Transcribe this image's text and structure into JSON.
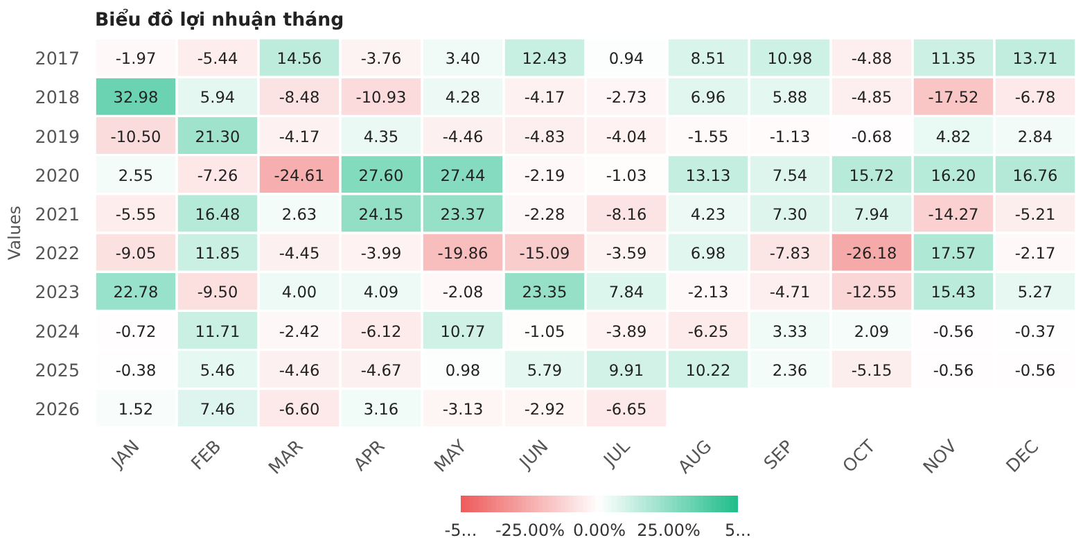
{
  "chart_data": {
    "type": "heatmap",
    "title": "Biểu đồ lợi nhuận tháng",
    "ylabel": "Values",
    "categories": [
      "JAN",
      "FEB",
      "MAR",
      "APR",
      "MAY",
      "JUN",
      "JUL",
      "AUG",
      "SEP",
      "OCT",
      "NOV",
      "DEC"
    ],
    "y_categories": [
      "2017",
      "2018",
      "2019",
      "2020",
      "2021",
      "2022",
      "2023",
      "2024",
      "2025",
      "2026"
    ],
    "cells": [
      [
        -1.97,
        -5.44,
        14.56,
        -3.76,
        3.4,
        12.43,
        0.94,
        8.51,
        10.98,
        -4.88,
        11.35,
        13.71
      ],
      [
        32.98,
        5.94,
        -8.48,
        -10.93,
        4.28,
        -4.17,
        -2.73,
        6.96,
        5.88,
        -4.85,
        -17.52,
        -6.78
      ],
      [
        -10.5,
        21.3,
        -4.17,
        4.35,
        -4.46,
        -4.83,
        -4.04,
        -1.55,
        -1.13,
        -0.68,
        4.82,
        2.84
      ],
      [
        2.55,
        -7.26,
        -24.61,
        27.6,
        27.44,
        -2.19,
        -1.03,
        13.13,
        7.54,
        15.72,
        16.2,
        16.76
      ],
      [
        -5.55,
        16.48,
        2.63,
        24.15,
        23.37,
        -2.28,
        -8.16,
        4.23,
        7.3,
        7.94,
        -14.27,
        -5.21
      ],
      [
        -9.05,
        11.85,
        -4.45,
        -3.99,
        -19.86,
        -15.09,
        -3.59,
        6.98,
        -7.83,
        -26.18,
        17.57,
        -2.17
      ],
      [
        22.78,
        -9.5,
        4.0,
        4.09,
        -2.08,
        23.35,
        7.84,
        -2.13,
        -4.71,
        -12.55,
        15.43,
        5.27
      ],
      [
        -0.72,
        11.71,
        -2.42,
        -6.12,
        10.77,
        -1.05,
        -3.89,
        -6.25,
        3.33,
        2.09,
        -0.56,
        -0.37
      ],
      [
        -0.38,
        5.46,
        -4.46,
        -4.67,
        0.98,
        5.79,
        9.91,
        10.22,
        2.36,
        -5.15,
        -0.56,
        -0.56
      ],
      [
        1.52,
        7.46,
        -6.6,
        3.16,
        -3.13,
        -2.92,
        -6.65,
        null,
        null,
        null,
        null,
        null
      ]
    ],
    "cell_labels": [
      [
        "-1.97",
        "-5.44",
        "14.56",
        "-3.76",
        "3.40",
        "12.43",
        "0.94",
        "8.51",
        "10.98",
        "-4.88",
        "11.35",
        "13.71"
      ],
      [
        "32.98",
        "5.94",
        "-8.48",
        "-10.93",
        "4.28",
        "-4.17",
        "-2.73",
        "6.96",
        "5.88",
        "-4.85",
        "-17.52",
        "-6.78"
      ],
      [
        "-10.50",
        "21.30",
        "-4.17",
        "4.35",
        "-4.46",
        "-4.83",
        "-4.04",
        "-1.55",
        "-1.13",
        "-0.68",
        "4.82",
        "2.84"
      ],
      [
        "2.55",
        "-7.26",
        "-24.61",
        "27.60",
        "27.44",
        "-2.19",
        "-1.03",
        "13.13",
        "7.54",
        "15.72",
        "16.20",
        "16.76"
      ],
      [
        "-5.55",
        "16.48",
        "2.63",
        "24.15",
        "23.37",
        "-2.28",
        "-8.16",
        "4.23",
        "7.30",
        "7.94",
        "-14.27",
        "-5.21"
      ],
      [
        "-9.05",
        "11.85",
        "-4.45",
        "-3.99",
        "-19.86",
        "-15.09",
        "-3.59",
        "6.98",
        "-7.83",
        "-26.18",
        "17.57",
        "-2.17"
      ],
      [
        "22.78",
        "-9.50",
        "4.00",
        "4.09",
        "-2.08",
        "23.35",
        "7.84",
        "-2.13",
        "-4.71",
        "-12.55",
        "15.43",
        "5.27"
      ],
      [
        "-0.72",
        "11.71",
        "-2.42",
        "-6.12",
        "10.77",
        "-1.05",
        "-3.89",
        "-6.25",
        "3.33",
        "2.09",
        "-0.56",
        "-0.37"
      ],
      [
        "-0.38",
        "5.46",
        "-4.46",
        "-4.67",
        "0.98",
        "5.79",
        "9.91",
        "10.22",
        "2.36",
        "-5.15",
        "-0.56",
        "-0.56"
      ],
      [
        "1.52",
        "7.46",
        "-6.60",
        "3.16",
        "-3.13",
        "-2.92",
        "-6.65",
        null,
        null,
        null,
        null,
        null
      ]
    ],
    "clim": [
      -50,
      50
    ],
    "cticks": [
      {
        "value": -50,
        "label": "-5..."
      },
      {
        "value": -25,
        "label": "-25.00%"
      },
      {
        "value": 0,
        "label": "0.00%"
      },
      {
        "value": 25,
        "label": "25.00%"
      },
      {
        "value": 50,
        "label": "5..."
      }
    ]
  }
}
